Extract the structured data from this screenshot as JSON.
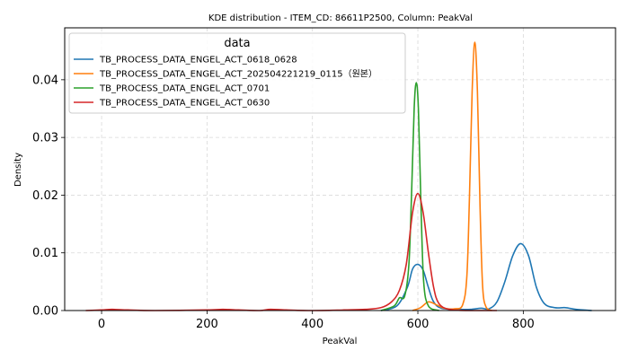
{
  "chart_data": {
    "type": "line",
    "title": "KDE distribution - ITEM_CD: 86611P2500, Column: PeakVal",
    "xlabel": "PeakVal",
    "ylabel": "Density",
    "xlim": [
      -70,
      975
    ],
    "ylim": [
      0,
      0.049
    ],
    "xticks": [
      0,
      200,
      400,
      600,
      800
    ],
    "yticks": [
      0.0,
      0.01,
      0.02,
      0.03,
      0.04
    ],
    "ytick_labels": [
      "0.00",
      "0.01",
      "0.02",
      "0.03",
      "0.04"
    ],
    "grid": true,
    "legend": {
      "title": "data",
      "position": "top-left"
    },
    "series": [
      {
        "name": "TB_PROCESS_DATA_ENGEL_ACT_0618_0628",
        "color": "#1f77b4",
        "points": [
          [
            530,
            0
          ],
          [
            560,
            0.0008
          ],
          [
            580,
            0.004
          ],
          [
            590,
            0.0072
          ],
          [
            600,
            0.008
          ],
          [
            610,
            0.007
          ],
          [
            620,
            0.004
          ],
          [
            630,
            0.0015
          ],
          [
            645,
            0.0004
          ],
          [
            680,
            0.0002
          ],
          [
            700,
            0.0002
          ],
          [
            720,
            0.0004
          ],
          [
            735,
            0.0003
          ],
          [
            750,
            0.0015
          ],
          [
            765,
            0.005
          ],
          [
            780,
            0.0095
          ],
          [
            795,
            0.0116
          ],
          [
            810,
            0.0095
          ],
          [
            825,
            0.004
          ],
          [
            840,
            0.0012
          ],
          [
            860,
            0.0005
          ],
          [
            880,
            0.0005
          ],
          [
            900,
            0.0002
          ],
          [
            930,
            0.0
          ]
        ]
      },
      {
        "name": "TB_PROCESS_DATA_ENGEL_ACT_202504221219_0115（원본）",
        "color": "#ff7f0e",
        "points": [
          [
            590,
            0
          ],
          [
            605,
            0.0005
          ],
          [
            620,
            0.0015
          ],
          [
            635,
            0.001
          ],
          [
            650,
            0.0004
          ],
          [
            670,
            0.0003
          ],
          [
            685,
            0.001
          ],
          [
            693,
            0.006
          ],
          [
            698,
            0.02
          ],
          [
            703,
            0.038
          ],
          [
            708,
            0.0465
          ],
          [
            713,
            0.038
          ],
          [
            718,
            0.018
          ],
          [
            723,
            0.004
          ],
          [
            730,
            0.0005
          ],
          [
            740,
            0.0
          ]
        ]
      },
      {
        "name": "TB_PROCESS_DATA_ENGEL_ACT_0701",
        "color": "#2ca02c",
        "points": [
          [
            530,
            0
          ],
          [
            555,
            0.0008
          ],
          [
            565,
            0.0022
          ],
          [
            575,
            0.0025
          ],
          [
            583,
            0.008
          ],
          [
            588,
            0.02
          ],
          [
            593,
            0.035
          ],
          [
            597,
            0.0395
          ],
          [
            601,
            0.035
          ],
          [
            606,
            0.018
          ],
          [
            611,
            0.005
          ],
          [
            620,
            0.0008
          ],
          [
            640,
            0.0
          ]
        ]
      },
      {
        "name": "TB_PROCESS_DATA_ENGEL_ACT_0630",
        "color": "#d62728",
        "points": [
          [
            -30,
            0
          ],
          [
            0,
            0.0001
          ],
          [
            20,
            0.0002
          ],
          [
            50,
            0.0001
          ],
          [
            100,
            0.0
          ],
          [
            200,
            0.0001
          ],
          [
            230,
            0.0002
          ],
          [
            260,
            0.0001
          ],
          [
            300,
            0.0
          ],
          [
            320,
            0.0002
          ],
          [
            350,
            0.0001
          ],
          [
            400,
            0.0
          ],
          [
            460,
            0.0001
          ],
          [
            500,
            0.0002
          ],
          [
            530,
            0.0005
          ],
          [
            550,
            0.0015
          ],
          [
            565,
            0.0035
          ],
          [
            578,
            0.008
          ],
          [
            590,
            0.017
          ],
          [
            600,
            0.0203
          ],
          [
            610,
            0.017
          ],
          [
            620,
            0.01
          ],
          [
            630,
            0.004
          ],
          [
            640,
            0.0012
          ],
          [
            660,
            0.0002
          ],
          [
            700,
            0.0
          ],
          [
            750,
            0.0
          ]
        ]
      }
    ]
  }
}
